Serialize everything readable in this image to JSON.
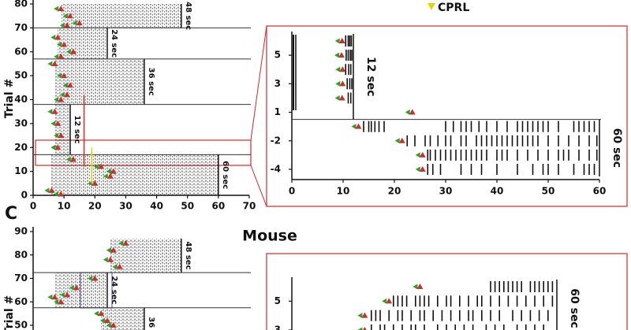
{
  "chart_data": [
    {
      "type": "raster",
      "ylabel": "Trial #",
      "xlim": [
        0,
        70
      ],
      "xticks": [
        0,
        10,
        20,
        30,
        40,
        50,
        60,
        70
      ],
      "ylim": [
        0,
        80
      ],
      "yticks": [
        0,
        10,
        20,
        30,
        40,
        50,
        60,
        70,
        80
      ],
      "legend": [
        {
          "name": "CPRL",
          "color": "#e6d200"
        }
      ],
      "blocks": [
        {
          "label": "48 sec",
          "duration": 48,
          "from": 70,
          "to": 80,
          "markers": [
            [
              9,
              78
            ],
            [
              12,
              75
            ],
            [
              15,
              72
            ],
            [
              11,
              71
            ]
          ]
        },
        {
          "label": "24 sec",
          "duration": 24,
          "from": 57,
          "to": 70,
          "markers": [
            [
              8,
              66
            ],
            [
              10,
              63
            ],
            [
              13,
              60
            ],
            [
              9,
              58
            ]
          ]
        },
        {
          "label": "36 sec",
          "duration": 36,
          "from": 38,
          "to": 57,
          "markers": [
            [
              7,
              55
            ],
            [
              10,
              50
            ],
            [
              12,
              46
            ],
            [
              11,
              42
            ],
            [
              9,
              40
            ]
          ]
        },
        {
          "label": "12 sec",
          "duration": 12,
          "from": 17,
          "to": 38,
          "markers": [
            [
              7,
              35
            ],
            [
              8,
              30
            ],
            [
              9,
              25
            ],
            [
              8,
              20
            ]
          ]
        },
        {
          "label": "60 sec",
          "duration": 60,
          "from": 0,
          "to": 17,
          "markers": [
            [
              13,
              15
            ],
            [
              22,
              12
            ],
            [
              26,
              10
            ],
            [
              25,
              8
            ],
            [
              20,
              5
            ],
            [
              6,
              2
            ],
            [
              9,
              0.5
            ]
          ]
        }
      ],
      "reference_lines": [
        {
          "x": 16.5,
          "from": 12,
          "to": 42,
          "color": "#d62728"
        },
        {
          "x": 19,
          "from": 5,
          "to": 20,
          "color": "#d8d800"
        }
      ]
    },
    {
      "type": "raster-rows",
      "xlim": [
        0,
        60
      ],
      "xticks": [
        0,
        10,
        20,
        30,
        40,
        50,
        60
      ],
      "blocks": [
        {
          "label": "12 sec",
          "duration": 12,
          "rows": [
            {
              "label": null,
              "mark": 9.8,
              "events": [
                10.5,
                11,
                11.3,
                11.6
              ]
            },
            {
              "label": "5",
              "mark": 9.7,
              "events": [
                10.6,
                11,
                11.4,
                11.7
              ]
            },
            {
              "label": null,
              "mark": 9.9,
              "events": [
                10.5,
                11.1,
                11.5
              ]
            },
            {
              "label": "3",
              "mark": 9.9,
              "events": [
                10.8,
                11.3,
                11.7
              ]
            },
            {
              "label": null,
              "mark": 9.8,
              "events": [
                11,
                11.5
              ]
            },
            {
              "label": "1",
              "mark": 23.5,
              "events": []
            }
          ]
        },
        {
          "label": "60 sec",
          "duration": 60,
          "rows": [
            {
              "label": null,
              "mark": 13,
              "events": [
                14,
                15,
                15.5,
                16.2,
                17,
                18,
                30,
                31.5,
                33,
                34,
                35,
                36.5,
                38,
                40,
                42,
                44,
                45,
                46,
                47,
                48,
                49,
                50,
                52,
                55,
                56,
                57,
                58,
                59
              ]
            },
            {
              "label": "-2",
              "mark": 21.5,
              "events": [
                22.5,
                24,
                26,
                27,
                28.5,
                30,
                31,
                33,
                34,
                36,
                37,
                38,
                39,
                40,
                41,
                42,
                43,
                44,
                45,
                46,
                47,
                48,
                50,
                52,
                54,
                56,
                58,
                59.5
              ]
            },
            {
              "label": null,
              "mark": 25.5,
              "events": [
                26.5,
                27,
                28,
                29,
                30,
                31,
                32,
                33,
                34,
                35,
                36,
                37,
                38,
                40,
                41,
                42,
                44,
                46,
                48,
                50,
                52,
                53,
                54,
                56,
                58,
                59.5
              ]
            },
            {
              "label": "-4",
              "mark": 25.5,
              "events": [
                26.5,
                27.5,
                29,
                33,
                35,
                37,
                40,
                44,
                47,
                49,
                50,
                52,
                55,
                57,
                58,
                59
              ]
            }
          ]
        }
      ]
    },
    {
      "type": "raster",
      "panel_label": "C",
      "title": "Mouse",
      "ylabel": "Trial #",
      "xlim": [
        0,
        70
      ],
      "ylim": [
        50,
        90
      ],
      "yticks": [
        50,
        60,
        70,
        80,
        90
      ],
      "blocks": [
        {
          "label": "48 sec",
          "duration": 48,
          "from": 72.5,
          "to": 87,
          "markers": [
            [
              30,
              85
            ],
            [
              26,
              82
            ],
            [
              25,
              78
            ],
            [
              28,
              75
            ]
          ]
        },
        {
          "label": "24 sec",
          "duration": 24,
          "from": 57.5,
          "to": 72.5,
          "markers": [
            [
              20,
              70
            ],
            [
              14,
              66
            ],
            [
              11,
              63
            ],
            [
              9,
              60
            ],
            [
              7,
              62
            ]
          ]
        },
        {
          "label": "36",
          "duration": 36,
          "from": 45,
          "to": 57.5,
          "markers": [
            [
              22,
              55
            ],
            [
              24,
              52
            ],
            [
              26,
              50
            ]
          ]
        }
      ]
    },
    {
      "type": "raster-rows",
      "xlim": [
        0,
        60
      ],
      "blocks": [
        {
          "label": "60 sec",
          "duration": 60,
          "rows": [
            {
              "label": null,
              "mark": 29,
              "events": [
                45,
                46,
                47,
                48,
                49,
                50,
                51,
                52,
                54,
                55,
                56,
                57,
                58,
                59
              ]
            },
            {
              "label": "5",
              "mark": 22,
              "events": [
                23,
                24,
                25,
                26,
                28,
                29,
                30,
                31,
                33,
                35,
                36,
                38,
                40,
                42,
                43,
                45,
                47,
                49,
                51,
                53,
                55,
                57,
                59
              ]
            },
            {
              "label": null,
              "mark": 16.5,
              "events": [
                18,
                19,
                20,
                22,
                24,
                25,
                27,
                29,
                30,
                32,
                34,
                36,
                38,
                40,
                41,
                43,
                45,
                47,
                50,
                52,
                54,
                56,
                58
              ]
            },
            {
              "label": "3",
              "mark": 16.5,
              "events": [
                18,
                20,
                21,
                23,
                25,
                27,
                28,
                30,
                33,
                35,
                37,
                39,
                41,
                44,
                46,
                48,
                51,
                53,
                55,
                57
              ]
            }
          ]
        }
      ]
    }
  ]
}
